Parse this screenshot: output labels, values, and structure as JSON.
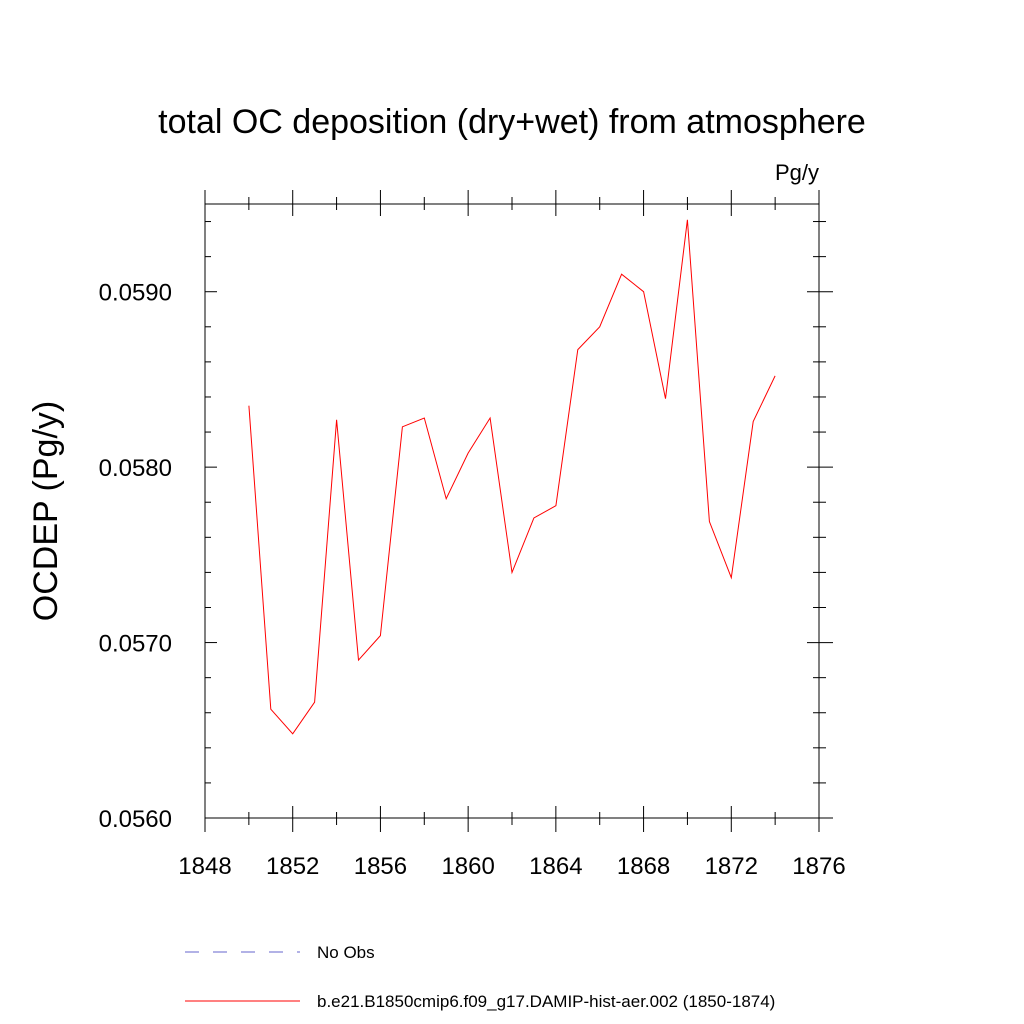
{
  "chart_data": {
    "type": "line",
    "title": "total OC deposition (dry+wet) from atmosphere",
    "units": "Pg/y",
    "xlabel": "",
    "ylabel": "OCDEP  (Pg/y)",
    "xlim": [
      1848,
      1876
    ],
    "ylim": [
      0.056,
      0.0595
    ],
    "x_ticks": [
      1848,
      1852,
      1856,
      1860,
      1864,
      1868,
      1872,
      1876
    ],
    "x_tick_labels": [
      "1848",
      "1852",
      "1856",
      "1860",
      "1864",
      "1868",
      "1872",
      "1876"
    ],
    "y_ticks": [
      0.056,
      0.057,
      0.058,
      0.059
    ],
    "y_tick_labels": [
      "0.0560",
      "0.0570",
      "0.0580",
      "0.0590"
    ],
    "grid": false,
    "legend_position": "bottom",
    "legend": [
      {
        "label": "No Obs",
        "color": "#6666cc",
        "style": "dashed"
      },
      {
        "label": "b.e21.B1850cmip6.f09_g17.DAMIP-hist-aer.002 (1850-1874)",
        "color": "#ff0000",
        "style": "solid"
      }
    ],
    "series": [
      {
        "name": "b.e21.B1850cmip6.f09_g17.DAMIP-hist-aer.002 (1850-1874)",
        "color": "#ff0000",
        "x": [
          1850,
          1851,
          1852,
          1853,
          1854,
          1855,
          1856,
          1857,
          1858,
          1859,
          1860,
          1861,
          1862,
          1863,
          1864,
          1865,
          1866,
          1867,
          1868,
          1869,
          1870,
          1871,
          1872,
          1873,
          1874
        ],
        "y": [
          0.05835,
          0.05662,
          0.05648,
          0.05666,
          0.05827,
          0.0569,
          0.05704,
          0.05823,
          0.05828,
          0.05782,
          0.05808,
          0.05828,
          0.0574,
          0.05771,
          0.05778,
          0.05867,
          0.0588,
          0.0591,
          0.059,
          0.05839,
          0.05941,
          0.05769,
          0.05737,
          0.05826,
          0.05852
        ]
      }
    ]
  }
}
